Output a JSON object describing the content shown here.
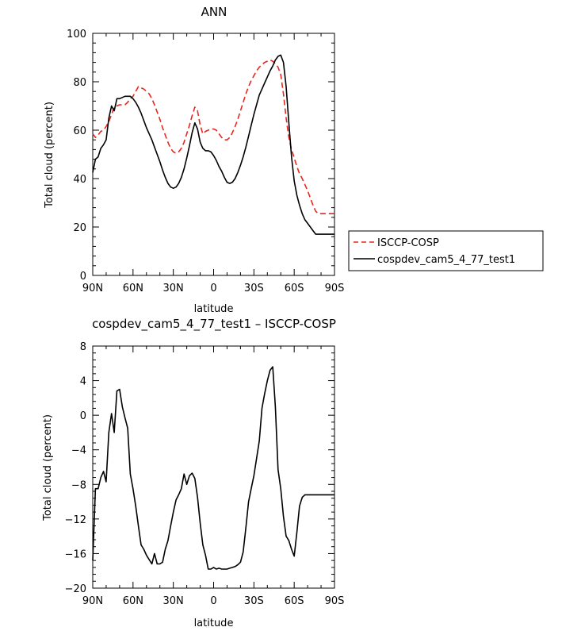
{
  "chart_data": [
    {
      "type": "line",
      "title": "ANN",
      "xlabel": "latitude",
      "ylabel": "Total cloud (percent)",
      "xlim": [
        90,
        -90
      ],
      "ylim": [
        0,
        100
      ],
      "xticks": [
        90,
        60,
        30,
        0,
        -30,
        -60,
        -90
      ],
      "xtick_labels": [
        "90N",
        "60N",
        "30N",
        "0",
        "30S",
        "60S",
        "90S"
      ],
      "yticks": [
        0,
        20,
        40,
        60,
        80,
        100
      ],
      "ytick_labels": [
        "0",
        "20",
        "40",
        "60",
        "80",
        "100"
      ],
      "legend_position": "right",
      "series": [
        {
          "name": "ISCCP-COSP",
          "color": "#e8261e",
          "dash": "dashed",
          "x": [
            90,
            88,
            86,
            84,
            82,
            80,
            78,
            76,
            74,
            72,
            70,
            68,
            66,
            64,
            62,
            60,
            58,
            56,
            54,
            52,
            50,
            48,
            46,
            44,
            42,
            40,
            38,
            36,
            34,
            32,
            30,
            28,
            26,
            24,
            22,
            20,
            18,
            16,
            14,
            12,
            10,
            8,
            6,
            4,
            2,
            0,
            -2,
            -4,
            -6,
            -8,
            -10,
            -12,
            -14,
            -16,
            -18,
            -20,
            -22,
            -24,
            -26,
            -28,
            -30,
            -32,
            -34,
            -36,
            -38,
            -40,
            -42,
            -44,
            -46,
            -48,
            -50,
            -52,
            -54,
            -56,
            -58,
            -60,
            -62,
            -64,
            -66,
            -68,
            -70,
            -72,
            -74,
            -76,
            -78,
            -80,
            -82,
            -84,
            -86,
            -88,
            -90
          ],
          "y": [
            58.5,
            57.0,
            58.0,
            59.5,
            60.0,
            61.5,
            63.5,
            66.5,
            69.5,
            70.0,
            70.5,
            70.5,
            70.5,
            71.5,
            73.0,
            74.0,
            76.0,
            78.0,
            77.5,
            77.0,
            76.0,
            75.0,
            73.0,
            70.5,
            67.5,
            64.5,
            61.0,
            58.0,
            55.0,
            52.5,
            51.0,
            50.5,
            51.0,
            52.5,
            55.0,
            58.5,
            62.0,
            66.0,
            69.5,
            68.0,
            62.0,
            58.5,
            59.5,
            60.0,
            60.5,
            60.5,
            60.0,
            58.5,
            57.0,
            56.0,
            56.0,
            57.0,
            59.0,
            61.5,
            64.5,
            68.0,
            71.5,
            75.0,
            78.0,
            80.5,
            82.5,
            84.5,
            86.0,
            87.0,
            88.0,
            88.5,
            89.0,
            88.5,
            87.5,
            86.0,
            83.0,
            75.0,
            65.0,
            57.0,
            52.0,
            48.5,
            45.0,
            42.0,
            40.0,
            37.5,
            35.0,
            32.0,
            29.0,
            26.5,
            25.5,
            25.5,
            25.5,
            25.5,
            25.5,
            25.5,
            25.5
          ]
        },
        {
          "name": "cospdev_cam5_4_77_test1",
          "color": "#000000",
          "dash": "solid",
          "x": [
            90,
            88,
            86,
            84,
            82,
            80,
            78,
            76,
            74,
            72,
            70,
            68,
            66,
            64,
            62,
            60,
            58,
            56,
            54,
            52,
            50,
            48,
            46,
            44,
            42,
            40,
            38,
            36,
            34,
            32,
            30,
            28,
            26,
            24,
            22,
            20,
            18,
            16,
            14,
            12,
            10,
            8,
            6,
            4,
            2,
            0,
            -2,
            -4,
            -6,
            -8,
            -10,
            -12,
            -14,
            -16,
            -18,
            -20,
            -22,
            -24,
            -26,
            -28,
            -30,
            -32,
            -34,
            -36,
            -38,
            -40,
            -42,
            -44,
            -46,
            -48,
            -50,
            -52,
            -54,
            -56,
            -58,
            -60,
            -62,
            -64,
            -66,
            -68,
            -70,
            -72,
            -74,
            -76,
            -78,
            -80,
            -82,
            -84,
            -86,
            -88,
            -90
          ],
          "y": [
            42.5,
            48.0,
            49.0,
            52.5,
            54.0,
            56.0,
            65.0,
            70.0,
            68.0,
            73.0,
            73.0,
            73.5,
            74.0,
            74.0,
            74.0,
            73.0,
            71.5,
            69.5,
            67.0,
            64.0,
            61.0,
            58.5,
            56.0,
            53.0,
            50.0,
            47.0,
            43.5,
            40.5,
            38.0,
            36.5,
            36.0,
            36.5,
            38.0,
            40.5,
            44.0,
            48.5,
            53.5,
            59.0,
            63.0,
            60.5,
            55.0,
            52.5,
            51.5,
            51.5,
            51.0,
            49.5,
            47.5,
            45.0,
            43.0,
            40.5,
            38.5,
            38.0,
            38.5,
            40.0,
            42.5,
            45.5,
            49.0,
            53.0,
            57.5,
            62.0,
            66.5,
            70.5,
            74.5,
            77.0,
            79.5,
            82.0,
            84.5,
            86.5,
            89.0,
            90.5,
            91.0,
            88.0,
            78.0,
            63.0,
            49.0,
            39.0,
            33.0,
            29.0,
            25.5,
            23.0,
            21.5,
            20.0,
            18.5,
            17.0,
            17.0,
            17.0,
            17.0,
            17.0,
            17.0,
            17.0,
            17.0
          ]
        }
      ]
    },
    {
      "type": "line",
      "title": "cospdev_cam5_4_77_test1 – ISCCP-COSP",
      "xlabel": "latitude",
      "ylabel": "Total cloud (percent)",
      "xlim": [
        90,
        -90
      ],
      "ylim": [
        -20,
        8
      ],
      "xticks": [
        90,
        60,
        30,
        0,
        -30,
        -60,
        -90
      ],
      "xtick_labels": [
        "90N",
        "60N",
        "30N",
        "0",
        "30S",
        "60S",
        "90S"
      ],
      "yticks": [
        -20,
        -16,
        -12,
        -8,
        -4,
        0,
        4,
        8
      ],
      "ytick_labels": [
        "−20",
        "−16",
        "−12",
        "−8",
        "−4",
        "0",
        "4",
        "8"
      ],
      "series": [
        {
          "name": "",
          "color": "#000000",
          "dash": "solid",
          "x": [
            90,
            88,
            86,
            84,
            82,
            80,
            78,
            76,
            74,
            72,
            70,
            68,
            66,
            64,
            62,
            60,
            58,
            56,
            54,
            52,
            50,
            48,
            46,
            44,
            42,
            40,
            38,
            36,
            34,
            32,
            30,
            28,
            26,
            24,
            22,
            20,
            18,
            16,
            14,
            12,
            10,
            8,
            6,
            4,
            2,
            0,
            -2,
            -4,
            -6,
            -8,
            -10,
            -12,
            -14,
            -16,
            -18,
            -20,
            -22,
            -24,
            -26,
            -28,
            -30,
            -32,
            -34,
            -36,
            -38,
            -40,
            -42,
            -44,
            -46,
            -48,
            -50,
            -52,
            -54,
            -56,
            -58,
            -60,
            -62,
            -64,
            -66,
            -68,
            -70,
            -72,
            -74,
            -76,
            -78,
            -80,
            -82,
            -84,
            -86,
            -88,
            -90
          ],
          "y": [
            -16.8,
            -8.5,
            -8.5,
            -7.2,
            -6.5,
            -7.7,
            -2.0,
            0.2,
            -2.0,
            2.8,
            3.0,
            1.0,
            -0.3,
            -1.5,
            -6.8,
            -8.5,
            -10.5,
            -12.8,
            -15.0,
            -15.5,
            -16.2,
            -16.7,
            -17.2,
            -16.0,
            -17.2,
            -17.2,
            -17.0,
            -15.5,
            -14.5,
            -12.8,
            -11.2,
            -9.8,
            -9.2,
            -8.5,
            -6.8,
            -8.0,
            -7.0,
            -6.7,
            -7.3,
            -9.5,
            -12.5,
            -15.0,
            -16.2,
            -17.8,
            -17.8,
            -17.6,
            -17.8,
            -17.7,
            -17.8,
            -17.8,
            -17.8,
            -17.7,
            -17.6,
            -17.5,
            -17.3,
            -17.0,
            -15.8,
            -13.0,
            -10.0,
            -8.5,
            -7.0,
            -5.0,
            -3.0,
            0.8,
            2.5,
            4.0,
            5.2,
            5.6,
            1.0,
            -6.3,
            -8.5,
            -11.7,
            -14.0,
            -14.5,
            -15.5,
            -16.3,
            -13.5,
            -10.5,
            -9.5,
            -9.2,
            -9.2,
            -9.2,
            -9.2,
            -9.2,
            -9.2,
            -9.2,
            -9.2,
            -9.2,
            -9.2,
            -9.2,
            -9.2
          ]
        }
      ]
    }
  ]
}
